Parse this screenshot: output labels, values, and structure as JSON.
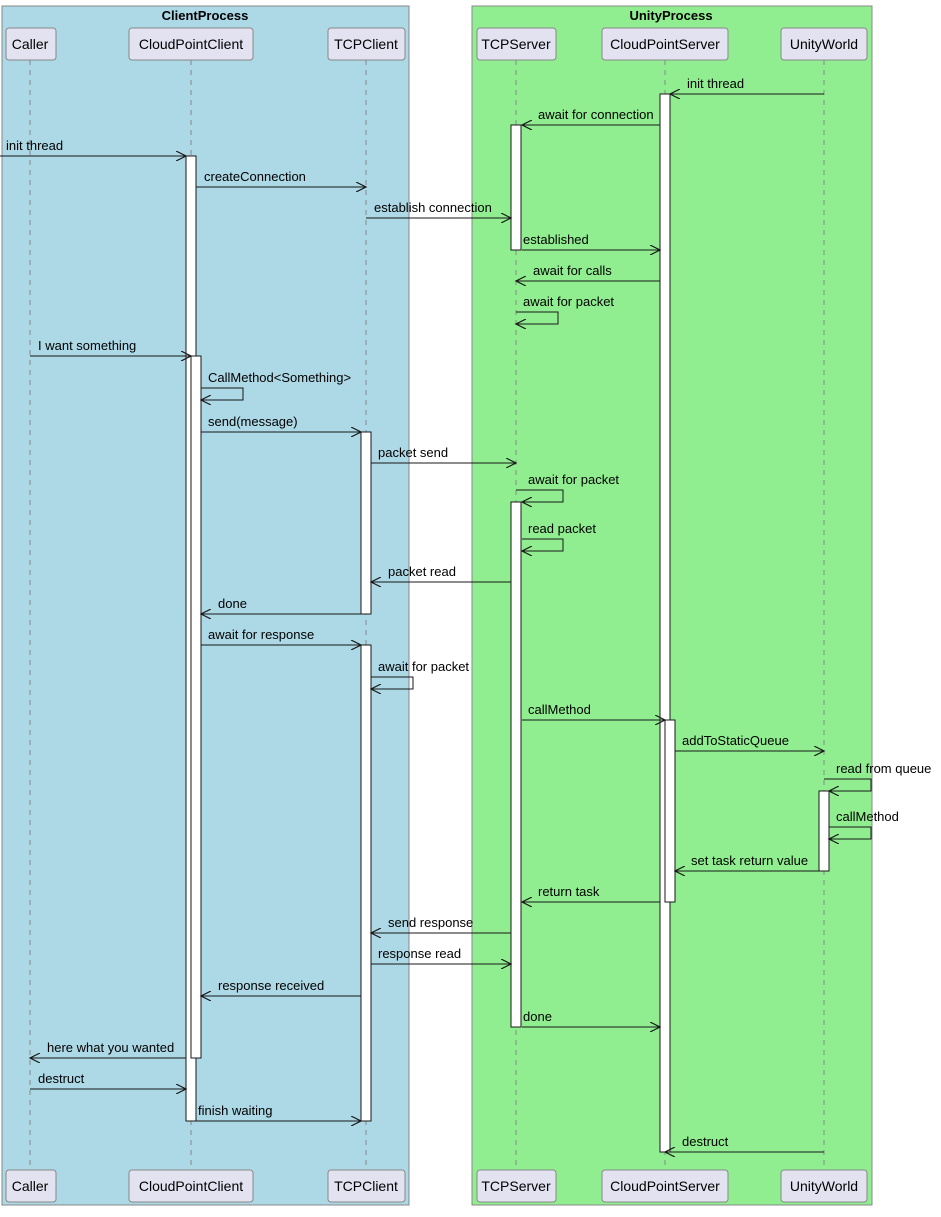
{
  "groups": [
    {
      "title": "ClientProcess"
    },
    {
      "title": "UnityProcess"
    }
  ],
  "participants": [
    "Caller",
    "CloudPointClient",
    "TCPClient",
    "TCPServer",
    "CloudPointServer",
    "UnityWorld"
  ],
  "messages": [
    "init thread",
    "await for connection",
    "init thread",
    "createConnection",
    "establish connection",
    "established",
    "await for calls",
    "await for packet",
    "I want something",
    "CallMethod<Something>",
    "send(message)",
    "packet send",
    "await for packet",
    "read packet",
    "packet read",
    "done",
    "await for response",
    "await for packet",
    "callMethod",
    "addToStaticQueue",
    "read from queue",
    "callMethod",
    "set task return value",
    "return task",
    "send response",
    "response read",
    "response received",
    "done",
    "here what you wanted",
    "destruct",
    "finish waiting",
    "destruct"
  ]
}
